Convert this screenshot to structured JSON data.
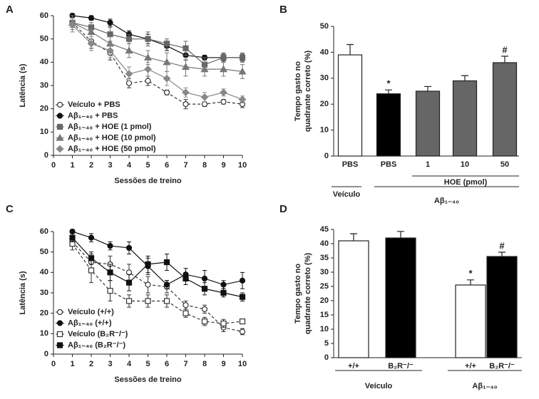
{
  "chart_data": [
    {
      "type": "line",
      "panel": "A",
      "xlabel": "Sessões de treino",
      "ylabel": "Latência (s)",
      "x": [
        1,
        2,
        3,
        4,
        5,
        6,
        7,
        8,
        9,
        10
      ],
      "xlim": [
        0,
        10
      ],
      "xticks": [
        0,
        1,
        2,
        3,
        4,
        5,
        6,
        7,
        8,
        9,
        10
      ],
      "ylim": [
        0,
        60
      ],
      "yticks": [
        0,
        10,
        20,
        30,
        40,
        50,
        60
      ],
      "series": [
        {
          "name": "Veículo + PBS",
          "color": "#333333",
          "fill": "#ffffff",
          "marker": "circle",
          "dashed": true,
          "values": [
            57,
            49,
            44,
            31,
            32,
            27,
            22,
            22,
            23,
            22
          ],
          "errors": [
            2,
            3,
            3,
            2,
            2,
            1,
            2,
            1,
            1,
            1.5
          ]
        },
        {
          "name": "Aβ₁₋₄₀ + PBS",
          "color": "#111111",
          "fill": "#111111",
          "marker": "circle",
          "dashed": false,
          "values": [
            60,
            59,
            57,
            52,
            50,
            47,
            43,
            42,
            42,
            42
          ],
          "errors": [
            1,
            1,
            1.5,
            1.5,
            2,
            2,
            2,
            1,
            1.5,
            1.5
          ]
        },
        {
          "name": "Aβ₁₋₄₀ + HOE (1 pmol)",
          "color": "#666666",
          "fill": "#666666",
          "marker": "square",
          "dashed": false,
          "values": [
            57,
            55,
            52,
            50,
            50,
            48,
            46,
            39,
            42,
            42
          ],
          "errors": [
            2,
            2,
            3,
            2,
            3,
            2,
            3,
            3,
            2,
            2
          ]
        },
        {
          "name": "Aβ₁₋₄₀ + HOE (10 pmol)",
          "color": "#777777",
          "fill": "#777777",
          "marker": "triangle",
          "dashed": false,
          "values": [
            57,
            53,
            48,
            45,
            42,
            40,
            38,
            37,
            37,
            36
          ],
          "errors": [
            3,
            3,
            3,
            3,
            3,
            4,
            4,
            3,
            3,
            3
          ]
        },
        {
          "name": "Aβ₁₋₄₀ + HOE (50 pmol)",
          "color": "#888888",
          "fill": "#888888",
          "marker": "diamond",
          "dashed": false,
          "values": [
            56,
            48,
            45,
            35,
            37,
            33,
            27,
            25,
            27,
            24
          ],
          "errors": [
            3,
            3,
            3,
            3,
            3,
            3,
            2,
            2,
            1.5,
            1.5
          ]
        }
      ]
    },
    {
      "type": "bar",
      "panel": "B",
      "ylabel": [
        "Tempo gasto no",
        "quadrante correto (%)"
      ],
      "categories": [
        "PBS",
        "PBS",
        "1",
        "10",
        "50"
      ],
      "values": [
        39,
        24,
        25,
        29,
        36
      ],
      "errors": [
        4,
        1.5,
        1.8,
        2,
        2.5
      ],
      "colors": [
        "#ffffff",
        "#000000",
        "#666666",
        "#666666",
        "#666666"
      ],
      "bar_annotations": [
        null,
        "*",
        null,
        null,
        "#"
      ],
      "groups": [
        "Veículo",
        "Aβ₁₋₄₀"
      ],
      "subgroup": "HOE (pmol)",
      "ylim": [
        0,
        50
      ],
      "yticks": [
        0,
        10,
        20,
        30,
        40,
        50
      ]
    },
    {
      "type": "line",
      "panel": "C",
      "xlabel": "Sessões de treino",
      "ylabel": "Latência (s)",
      "x": [
        1,
        2,
        3,
        4,
        5,
        6,
        7,
        8,
        9,
        10
      ],
      "xlim": [
        0,
        10
      ],
      "xticks": [
        0,
        1,
        2,
        3,
        4,
        5,
        6,
        7,
        8,
        9,
        10
      ],
      "ylim": [
        0,
        60
      ],
      "yticks": [
        0,
        10,
        20,
        30,
        40,
        50,
        60
      ],
      "series": [
        {
          "name": "Veículo (+/+)",
          "color": "#333333",
          "fill": "#ffffff",
          "marker": "circle",
          "dashed": true,
          "values": [
            55,
            45,
            44,
            40,
            34,
            33,
            24,
            22,
            13,
            11
          ],
          "errors": [
            2,
            4,
            4,
            4,
            4,
            3,
            2,
            2,
            2,
            1.5
          ]
        },
        {
          "name": "Aβ₁₋₄₀ (+/+)",
          "color": "#111111",
          "fill": "#111111",
          "marker": "circle",
          "dashed": false,
          "values": [
            60,
            57,
            53,
            52,
            43,
            34,
            39,
            37,
            34,
            36
          ],
          "errors": [
            1,
            2,
            2,
            3,
            4,
            2,
            3,
            4,
            2,
            4
          ]
        },
        {
          "name": "Veículo (B₂R⁻/⁻)",
          "color": "#333333",
          "fill": "#ffffff",
          "marker": "square",
          "dashed": true,
          "values": [
            54,
            41,
            31,
            26,
            26,
            26,
            20,
            16,
            15,
            16
          ],
          "errors": [
            3,
            6,
            5,
            3,
            3,
            3,
            2,
            2,
            2,
            1
          ]
        },
        {
          "name": "Aβ₁₋₄₀ (B₂R⁻/⁻)",
          "color": "#111111",
          "fill": "#111111",
          "marker": "square",
          "dashed": false,
          "values": [
            57,
            47,
            40,
            35,
            44,
            45,
            37,
            32,
            30,
            28
          ],
          "errors": [
            2,
            3,
            4,
            4,
            4,
            4,
            3,
            3,
            2,
            2
          ]
        }
      ]
    },
    {
      "type": "bar",
      "panel": "D",
      "ylabel": [
        "Tempo gasto no",
        "quadrante correto (%)"
      ],
      "categories": [
        "+/+",
        "B₂R⁻/⁻",
        "+/+",
        "B₂R⁻/⁻"
      ],
      "values": [
        41,
        42,
        25.5,
        35.5
      ],
      "errors": [
        2.5,
        2.3,
        1.8,
        1.5
      ],
      "colors": [
        "#ffffff",
        "#000000",
        "#ffffff",
        "#000000"
      ],
      "bar_annotations": [
        null,
        null,
        "*",
        "#"
      ],
      "groups": [
        "Veículo",
        "Aβ₁₋₄₀"
      ],
      "ylim": [
        0,
        45
      ],
      "yticks": [
        0,
        5,
        10,
        15,
        20,
        25,
        30,
        35,
        40,
        45
      ]
    }
  ]
}
